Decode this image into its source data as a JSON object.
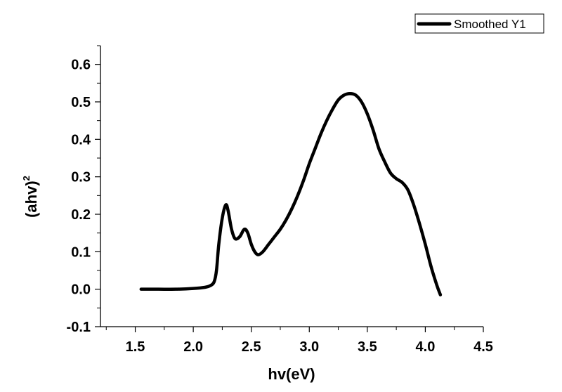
{
  "chart_data": {
    "type": "line",
    "xlabel": "hv(eV)",
    "ylabel": "(ahv)",
    "ylabel_superscript": "2",
    "xlim": [
      1.2,
      4.5
    ],
    "ylim": [
      -0.1,
      0.65
    ],
    "x_ticks": [
      "1.5",
      "2.0",
      "2.5",
      "3.0",
      "3.5",
      "4.0",
      "4.5"
    ],
    "y_ticks": [
      "-0.1",
      "0.0",
      "0.1",
      "0.2",
      "0.3",
      "0.4",
      "0.5",
      "0.6"
    ],
    "legend": "top-right",
    "grid": false,
    "series": [
      {
        "name": "Smoothed Y1",
        "color": "#000000",
        "x": [
          1.55,
          1.7,
          1.85,
          2.0,
          2.1,
          2.15,
          2.18,
          2.2,
          2.22,
          2.25,
          2.28,
          2.3,
          2.33,
          2.36,
          2.4,
          2.44,
          2.47,
          2.5,
          2.53,
          2.56,
          2.6,
          2.65,
          2.7,
          2.75,
          2.8,
          2.85,
          2.9,
          2.95,
          3.0,
          3.05,
          3.1,
          3.15,
          3.2,
          3.25,
          3.3,
          3.35,
          3.4,
          3.45,
          3.5,
          3.55,
          3.6,
          3.65,
          3.7,
          3.75,
          3.8,
          3.85,
          3.9,
          3.95,
          4.0,
          4.05,
          4.1,
          4.13
        ],
        "y": [
          0.0,
          0.0,
          0.0,
          0.002,
          0.005,
          0.01,
          0.02,
          0.05,
          0.12,
          0.19,
          0.225,
          0.21,
          0.16,
          0.135,
          0.14,
          0.16,
          0.15,
          0.12,
          0.1,
          0.092,
          0.1,
          0.12,
          0.14,
          0.16,
          0.185,
          0.215,
          0.25,
          0.29,
          0.335,
          0.375,
          0.415,
          0.45,
          0.48,
          0.505,
          0.518,
          0.522,
          0.518,
          0.5,
          0.468,
          0.425,
          0.375,
          0.34,
          0.31,
          0.295,
          0.285,
          0.265,
          0.225,
          0.175,
          0.12,
          0.06,
          0.01,
          -0.015
        ]
      }
    ]
  }
}
